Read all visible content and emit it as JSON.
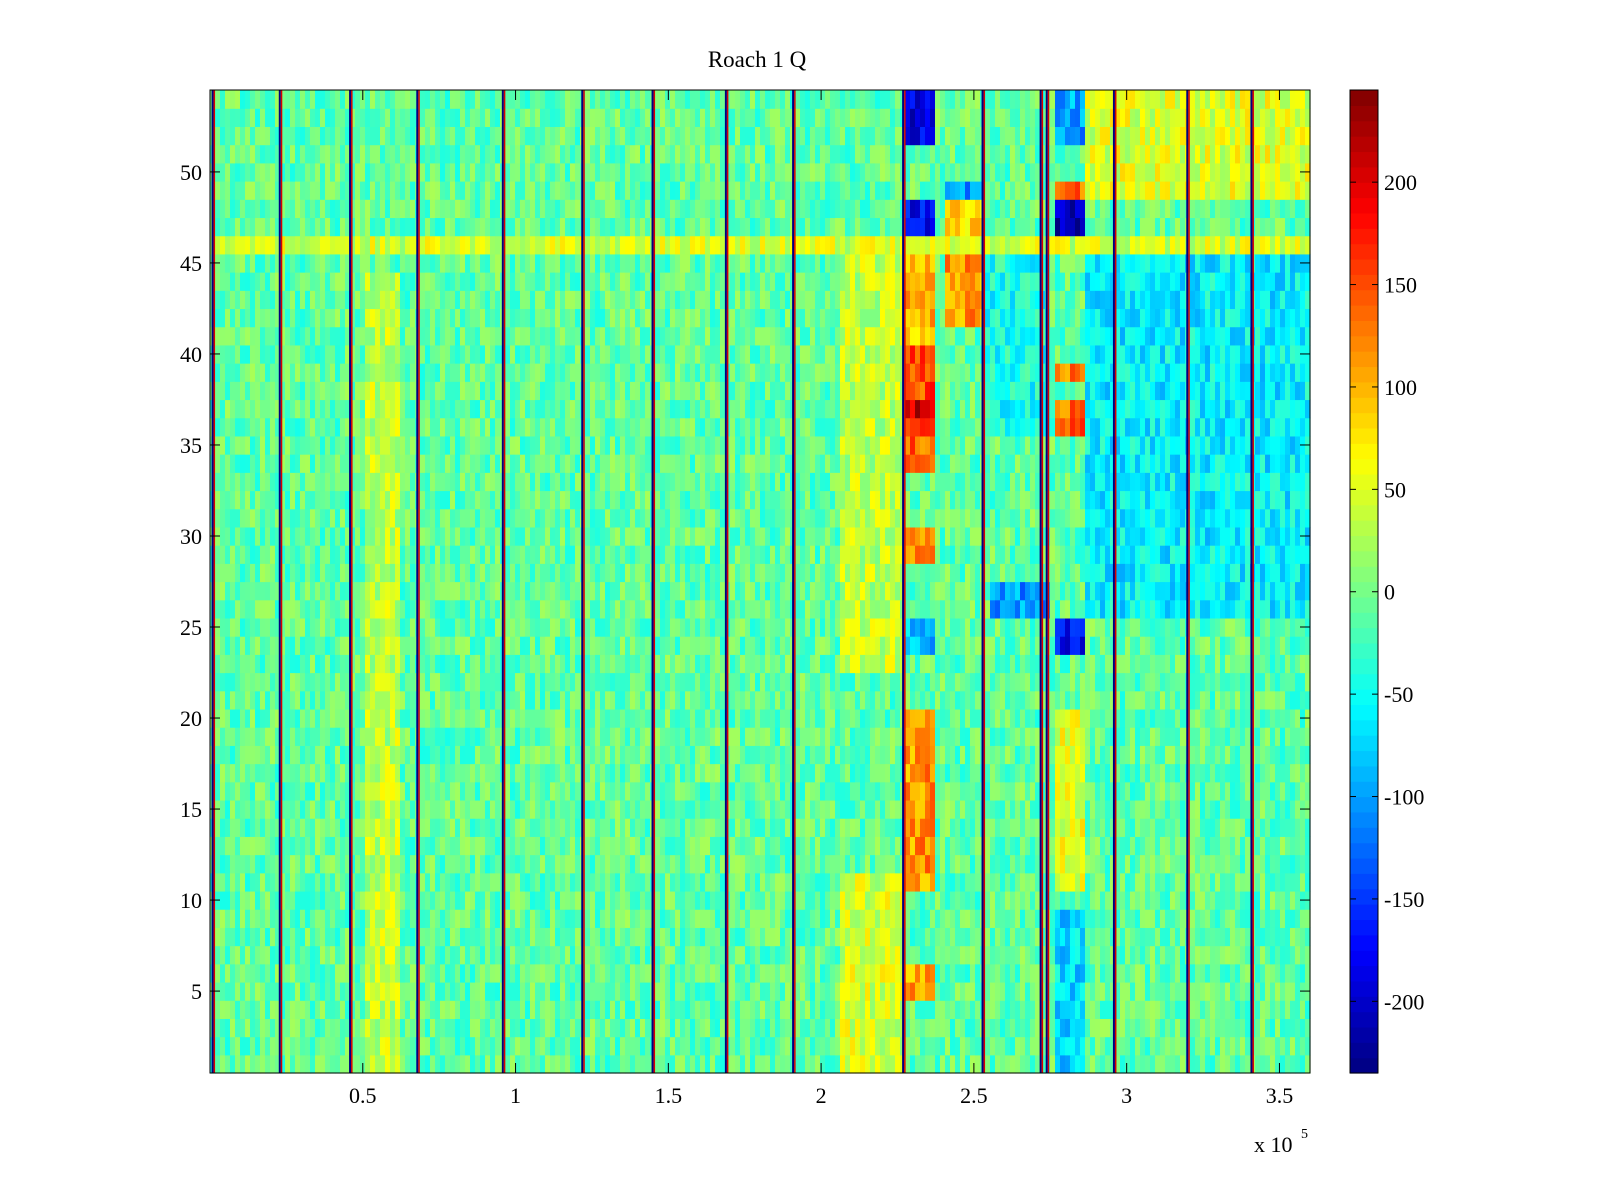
{
  "chart_data": {
    "type": "heatmap",
    "title": "Roach 1 Q",
    "xlabel": "",
    "ylabel": "",
    "x_exponent_label": {
      "base": "x 10",
      "exponent": "5"
    },
    "xlim": [
      0,
      3.6
    ],
    "ylim": [
      0.5,
      54.5
    ],
    "x_ticks": [
      0.5,
      1,
      1.5,
      2,
      2.5,
      3,
      3.5
    ],
    "x_tick_labels": [
      "0.5",
      "1",
      "1.5",
      "2",
      "2.5",
      "3",
      "3.5"
    ],
    "y_ticks": [
      5,
      10,
      15,
      20,
      25,
      30,
      35,
      40,
      45,
      50
    ],
    "y_tick_labels": [
      "5",
      "10",
      "15",
      "20",
      "25",
      "30",
      "35",
      "40",
      "45",
      "50"
    ],
    "rows": 54,
    "colormap": "jet",
    "clim": [
      -235,
      245
    ],
    "colorbar_ticks": [
      200,
      150,
      100,
      50,
      0,
      -50,
      -100,
      -150,
      -200
    ],
    "colorbar_tick_labels": [
      "200",
      "150",
      "100",
      "50",
      "0",
      "-50",
      "-100",
      "-150",
      "-200"
    ],
    "baseline_value": -10,
    "bands": [
      {
        "x_range": [
          0.5,
          0.62
        ],
        "rows": [
          1,
          45
        ],
        "value": 35
      },
      {
        "x_range": [
          2.07,
          2.27
        ],
        "rows": [
          1,
          12
        ],
        "value": 45
      },
      {
        "x_range": [
          2.07,
          2.27
        ],
        "rows": [
          23,
          46
        ],
        "value": 35
      },
      {
        "x_range": [
          2.28,
          2.37
        ],
        "rows": [
          11,
          21
        ],
        "value": 115
      },
      {
        "x_range": [
          2.28,
          2.37
        ],
        "rows": [
          29,
          31
        ],
        "value": 110
      },
      {
        "x_range": [
          2.28,
          2.37
        ],
        "rows": [
          34,
          37
        ],
        "value": 140
      },
      {
        "x_range": [
          2.28,
          2.37
        ],
        "rows": [
          37,
          38
        ],
        "value": 205
      },
      {
        "x_range": [
          2.28,
          2.37
        ],
        "rows": [
          38,
          41
        ],
        "value": 150
      },
      {
        "x_range": [
          2.28,
          2.37
        ],
        "rows": [
          41,
          46
        ],
        "value": 100
      },
      {
        "x_range": [
          2.28,
          2.37
        ],
        "rows": [
          5,
          7
        ],
        "value": 110
      },
      {
        "x_range": [
          2.28,
          2.37
        ],
        "rows": [
          46,
          47
        ],
        "value": -140
      },
      {
        "x_range": [
          2.28,
          2.37
        ],
        "rows": [
          47,
          49
        ],
        "value": -180
      },
      {
        "x_range": [
          2.28,
          2.37
        ],
        "rows": [
          52,
          55
        ],
        "value": -185
      },
      {
        "x_range": [
          2.28,
          2.37
        ],
        "rows": [
          24,
          26
        ],
        "value": -85
      },
      {
        "x_range": [
          2.4,
          2.53
        ],
        "rows": [
          42,
          47
        ],
        "value": 115
      },
      {
        "x_range": [
          2.4,
          2.53
        ],
        "rows": [
          47,
          49
        ],
        "value": 85
      },
      {
        "x_range": [
          2.4,
          2.53
        ],
        "rows": [
          49,
          50
        ],
        "value": -110
      },
      {
        "x_range": [
          2.55,
          2.75
        ],
        "rows": [
          26,
          28
        ],
        "value": -105
      },
      {
        "x_range": [
          2.76,
          2.86
        ],
        "rows": [
          46,
          47
        ],
        "value": 120
      },
      {
        "x_range": [
          2.76,
          2.86
        ],
        "rows": [
          47,
          49
        ],
        "value": -205
      },
      {
        "x_range": [
          2.76,
          2.86
        ],
        "rows": [
          49,
          50
        ],
        "value": 140
      },
      {
        "x_range": [
          2.76,
          2.86
        ],
        "rows": [
          24,
          26
        ],
        "value": -170
      },
      {
        "x_range": [
          2.76,
          2.86
        ],
        "rows": [
          36,
          38
        ],
        "value": 135
      },
      {
        "x_range": [
          2.76,
          2.86
        ],
        "rows": [
          39,
          40
        ],
        "value": 120
      },
      {
        "x_range": [
          2.76,
          2.86
        ],
        "rows": [
          11,
          21
        ],
        "value": 55
      },
      {
        "x_range": [
          2.76,
          2.86
        ],
        "rows": [
          1,
          10
        ],
        "value": -70
      },
      {
        "x_range": [
          2.76,
          2.86
        ],
        "rows": [
          52,
          55
        ],
        "value": -100
      },
      {
        "x_range": [
          2.53,
          2.75
        ],
        "rows": [
          36,
          46
        ],
        "value": -45
      },
      {
        "x_range": [
          2.86,
          3.6
        ],
        "rows": [
          26,
          46
        ],
        "value": -60
      },
      {
        "x_range": [
          2.86,
          3.6
        ],
        "rows": [
          49,
          55
        ],
        "value": 50
      },
      {
        "x_range": [
          0,
          3.6
        ],
        "rows": [
          46,
          47
        ],
        "value": 45
      }
    ],
    "stripes": [
      0.01,
      0.23,
      0.46,
      0.68,
      0.96,
      1.22,
      1.45,
      1.69,
      1.91,
      2.27,
      2.53,
      2.72,
      2.74,
      2.96,
      3.2,
      3.41
    ]
  }
}
